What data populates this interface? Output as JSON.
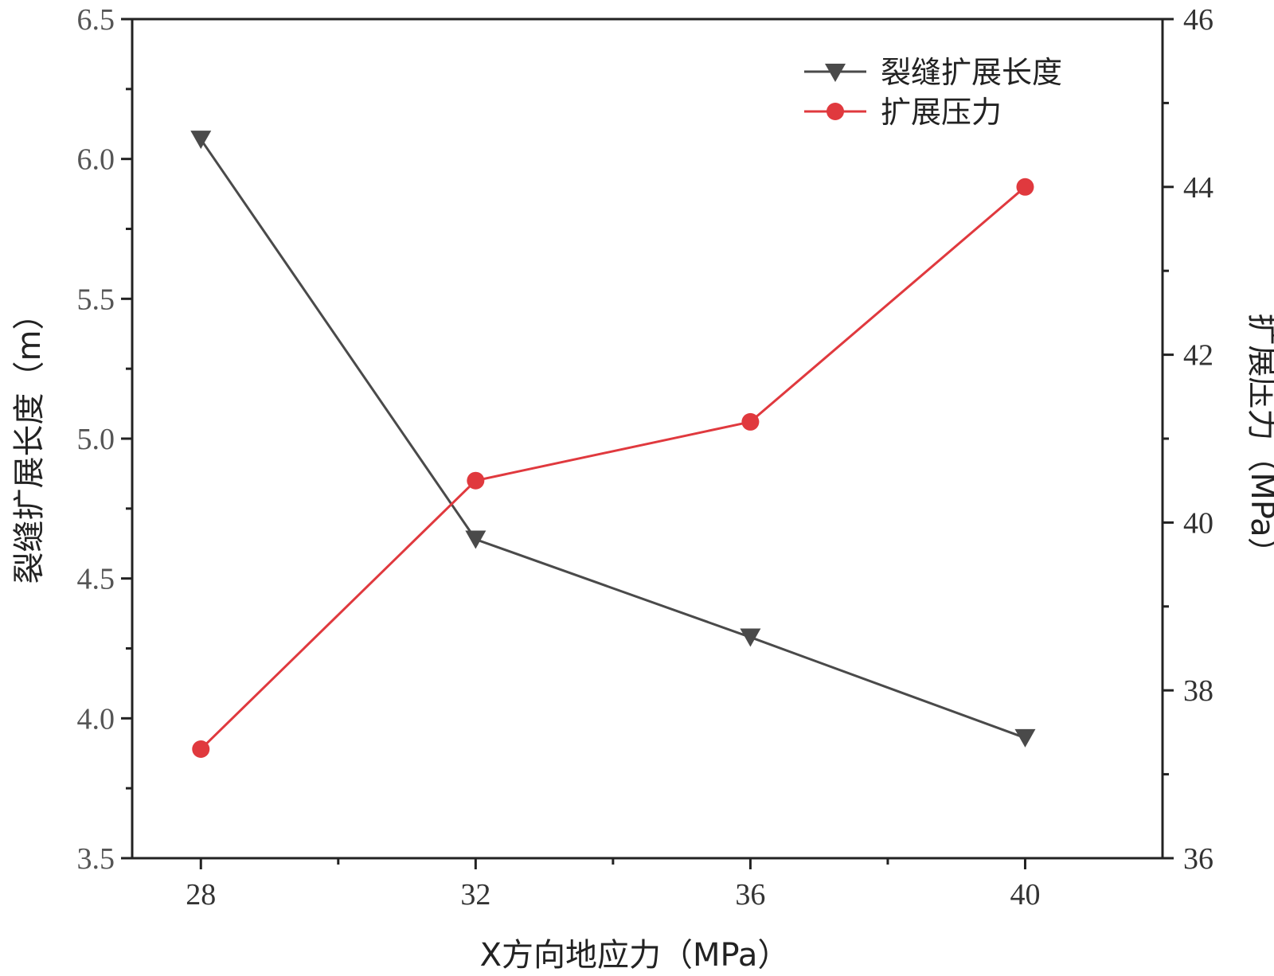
{
  "chart_data": {
    "type": "line",
    "title": "",
    "x": [
      28,
      32,
      36,
      40
    ],
    "xlabel": "X方向地应力（MPa）",
    "xlim": [
      27,
      42
    ],
    "xticks": [
      28,
      32,
      36,
      40
    ],
    "xtick_labels": [
      "28",
      "32",
      "36",
      "40"
    ],
    "ylabel_left": "裂缝扩展长度（m）",
    "ylim_left": [
      3.5,
      6.5
    ],
    "yticks_left": [
      "3.5",
      "4.0",
      "4.5",
      "5.0",
      "5.5",
      "6.0",
      "6.5"
    ],
    "ylabel_right": "扩展压力（MPa）",
    "ylim_right": [
      36,
      46
    ],
    "yticks_right": [
      "36",
      "38",
      "40",
      "42",
      "44",
      "46"
    ],
    "series": [
      {
        "name": "裂缝扩展长度",
        "axis": "left",
        "color": "#4a4a4a",
        "marker": "triangle-down",
        "values": [
          6.07,
          4.64,
          4.29,
          3.93
        ]
      },
      {
        "name": "扩展压力",
        "axis": "right",
        "color": "#e0393e",
        "marker": "circle",
        "values": [
          37.3,
          40.5,
          41.2,
          44.0
        ]
      }
    ],
    "legend_position": "top-right",
    "grid": false
  }
}
